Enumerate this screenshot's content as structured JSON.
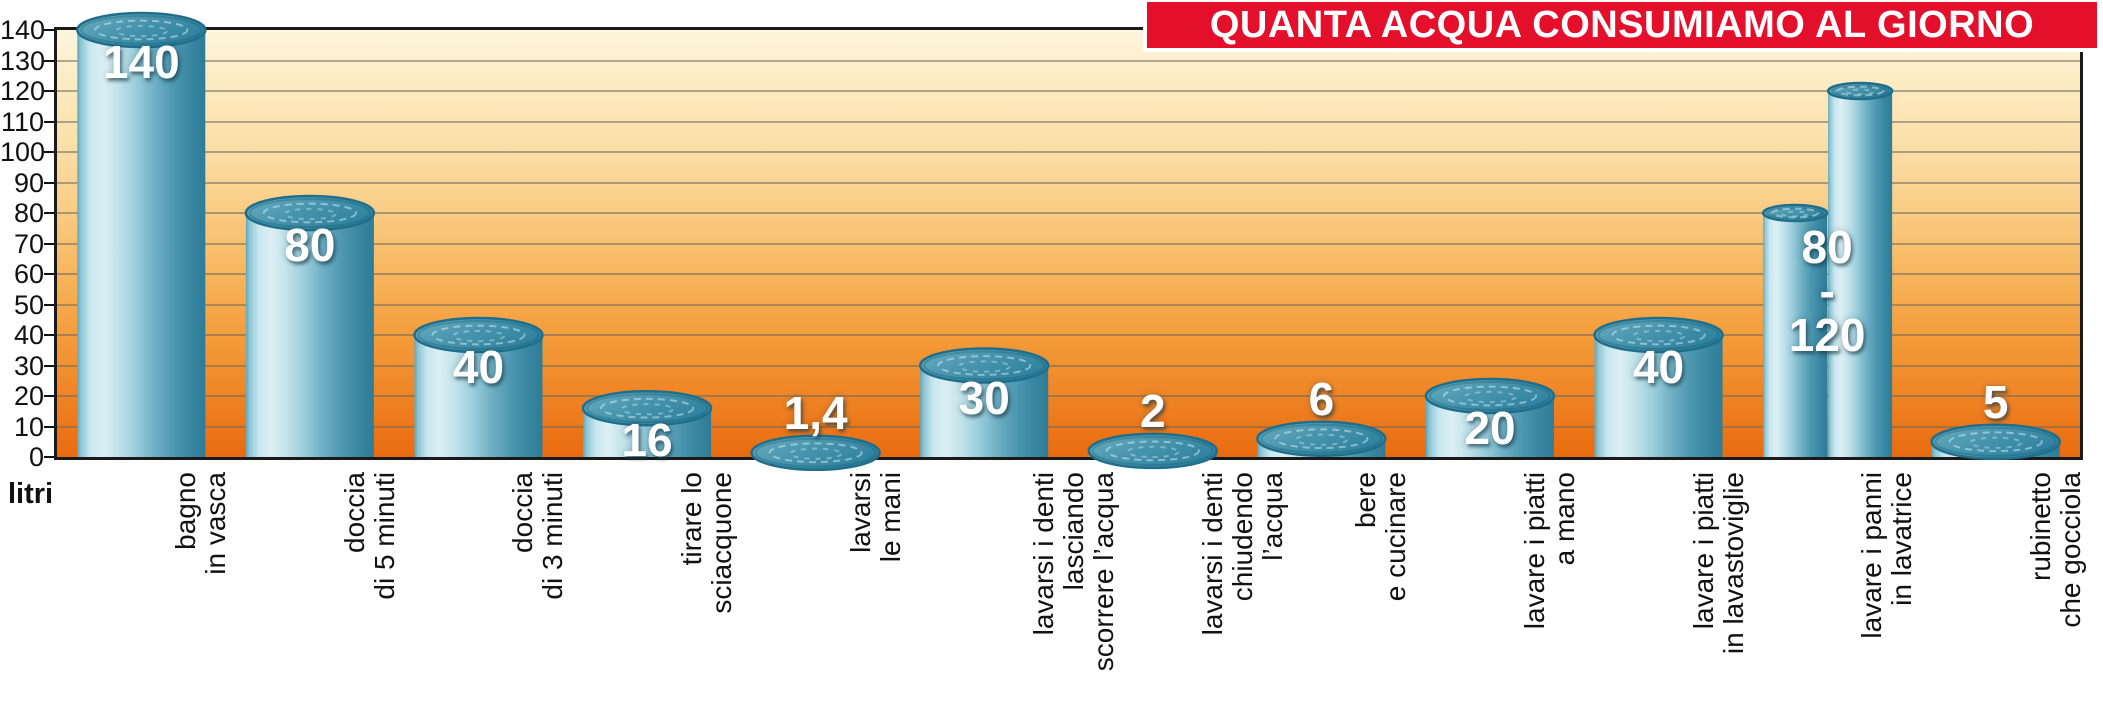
{
  "title": "QUANTA ACQUA CONSUMIAMO AL GIORNO",
  "colors": {
    "banner_bg": "#e40f2b",
    "banner_text": "#ffffff",
    "cylinder_dark": "#2d7c98",
    "cylinder_light": "#dbeff4",
    "bg_top": "#fdf5dd",
    "bg_bottom": "#e96a0f",
    "grid": "#6e695f",
    "axis": "#1a1a1a",
    "value_label": "#ffffff",
    "text": "#1a1a1a"
  },
  "chart_data": {
    "type": "bar",
    "title": "QUANTA ACQUA CONSUMIAMO AL GIORNO",
    "xlabel": "",
    "ylabel": "litri",
    "ylim": [
      0,
      140
    ],
    "ytick_step": 10,
    "yticks": [
      0,
      10,
      20,
      30,
      40,
      50,
      60,
      70,
      80,
      90,
      100,
      110,
      120,
      130,
      140
    ],
    "grid": true,
    "legend": false,
    "bars": [
      {
        "category": "bagno in vasca",
        "category_lines": [
          "bagno",
          "in vasca"
        ],
        "value": 140,
        "display_value": "140",
        "label_placement": "on"
      },
      {
        "category": "doccia di 5 minuti",
        "category_lines": [
          "doccia",
          "di 5 minuti"
        ],
        "value": 80,
        "display_value": "80",
        "label_placement": "on"
      },
      {
        "category": "doccia di 3 minuti",
        "category_lines": [
          "doccia",
          "di 3 minuti"
        ],
        "value": 40,
        "display_value": "40",
        "label_placement": "on"
      },
      {
        "category": "tirare lo sciacquone",
        "category_lines": [
          "tirare lo",
          "sciacquone"
        ],
        "value": 16,
        "display_value": "16",
        "label_placement": "on"
      },
      {
        "category": "lavarsi le mani",
        "category_lines": [
          "lavarsi",
          "le mani"
        ],
        "value": 1.4,
        "display_value": "1,4",
        "label_placement": "above"
      },
      {
        "category": "lavarsi i denti lasciando scorrere l’acqua",
        "category_lines": [
          "lavarsi i denti",
          "lasciando",
          "scorrere l’acqua"
        ],
        "value": 30,
        "display_value": "30",
        "label_placement": "on"
      },
      {
        "category": "lavarsi i denti chiudendo l’acqua",
        "category_lines": [
          "lavarsi i denti",
          "chiudendo",
          "l’acqua"
        ],
        "value": 2,
        "display_value": "2",
        "label_placement": "above"
      },
      {
        "category": "bere e cucinare",
        "category_lines": [
          "bere",
          "e cucinare"
        ],
        "value": 6,
        "display_value": "6",
        "label_placement": "above"
      },
      {
        "category": "lavare i piatti a mano",
        "category_lines": [
          "lavare i piatti",
          "a mano"
        ],
        "value": 20,
        "display_value": "20",
        "label_placement": "on"
      },
      {
        "category": "lavare i piatti in lavastoviglie",
        "category_lines": [
          "lavare i piatti",
          "in lavastoviglie"
        ],
        "value": 40,
        "display_value": "40",
        "label_placement": "on"
      },
      {
        "category": "lavare i panni in lavatrice",
        "category_lines": [
          "lavare i panni",
          "in lavatrice"
        ],
        "value": [
          80,
          120
        ],
        "display_value": "80\n-\n120",
        "label_placement": "range",
        "style": "double-cylinder"
      },
      {
        "category": "rubinetto che gocciola",
        "category_lines": [
          "rubinetto",
          "che gocciola"
        ],
        "value": 5,
        "display_value": "5",
        "label_placement": "above"
      }
    ]
  }
}
